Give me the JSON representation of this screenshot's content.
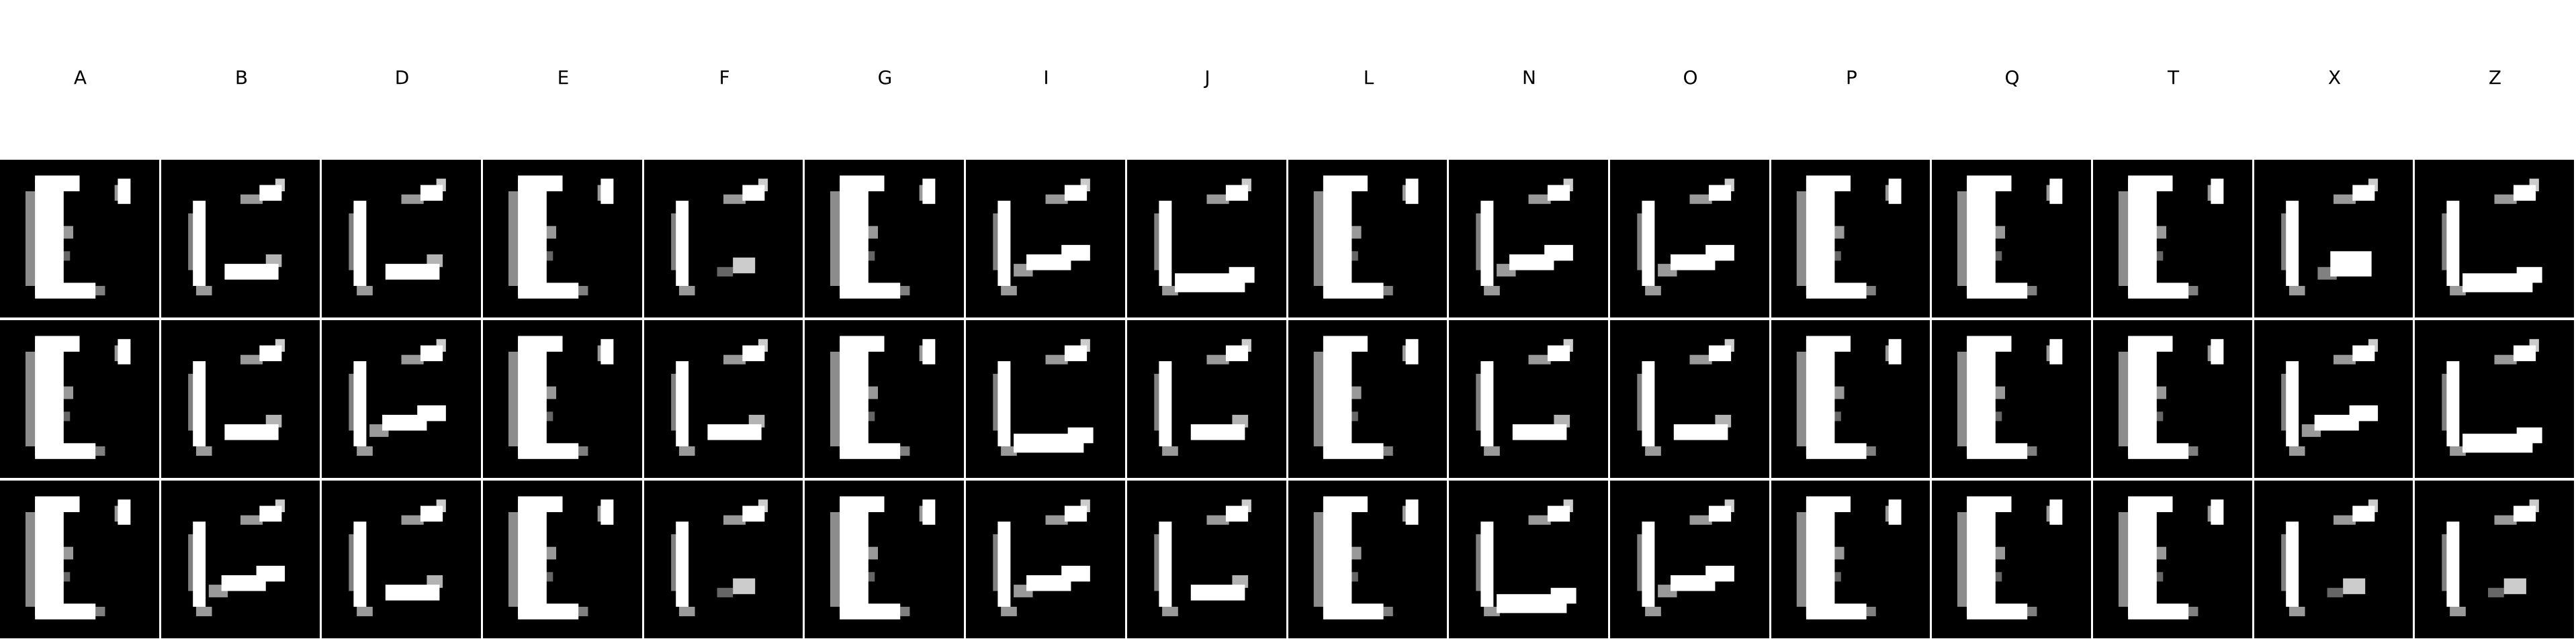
{
  "columns": [
    "A",
    "B",
    "D",
    "E",
    "F",
    "G",
    "I",
    "J",
    "L",
    "N",
    "O",
    "P",
    "Q",
    "T",
    "X",
    "Z"
  ],
  "rows": [
    [
      "E-mark",
      "bars",
      "bars",
      "E-mark",
      "bars-faint",
      "E-mark",
      "bars-slant",
      "bars-cup",
      "E-mark",
      "bars-slant",
      "bars-slant",
      "E-mark",
      "E-mark",
      "E-mark",
      "bars-blob",
      "bars-cup"
    ],
    [
      "E-mark",
      "bars",
      "bars-slant",
      "E-mark",
      "bars",
      "E-mark",
      "bars-cup",
      "bars",
      "E-mark",
      "bars",
      "bars",
      "E-mark",
      "E-mark",
      "E-mark",
      "bars-slant",
      "bars-cup"
    ],
    [
      "E-mark",
      "bars-slant",
      "bars",
      "E-mark",
      "bars-faint",
      "E-mark",
      "bars-slant",
      "bars",
      "E-mark",
      "bars-cup",
      "bars-slant",
      "E-mark",
      "E-mark",
      "E-mark",
      "bars-faint",
      "bars-faint"
    ]
  ],
  "colors": {
    "tile_bg": "#000000",
    "glyph": "#ffffff",
    "separator": "#ffffff"
  }
}
